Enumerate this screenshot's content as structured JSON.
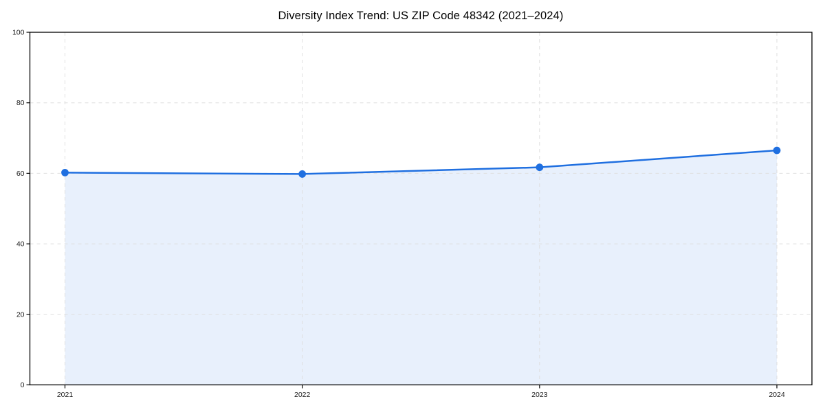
{
  "chart_data": {
    "type": "area",
    "title": "Diversity Index Trend: US ZIP Code 48342 (2021–2024)",
    "x_categories": [
      "2021",
      "2022",
      "2023",
      "2024"
    ],
    "series": [
      {
        "name": "Diversity Index",
        "values": [
          60.2,
          59.8,
          61.7,
          66.5
        ]
      }
    ],
    "ylim": [
      0,
      100
    ],
    "yticks": [
      0,
      20,
      40,
      60,
      80,
      100
    ],
    "xlabel": "",
    "ylabel": "",
    "grid": true,
    "grid_style": "dashed",
    "legend": false,
    "line_color": "#1f6fe0",
    "marker_color": "#1f6fe0",
    "fill_color": "#1f6fe0",
    "fill_opacity": 0.1,
    "grid_color": "#dedede",
    "axis_color": "#000000",
    "tick_label_color": "#1a1a1a"
  }
}
